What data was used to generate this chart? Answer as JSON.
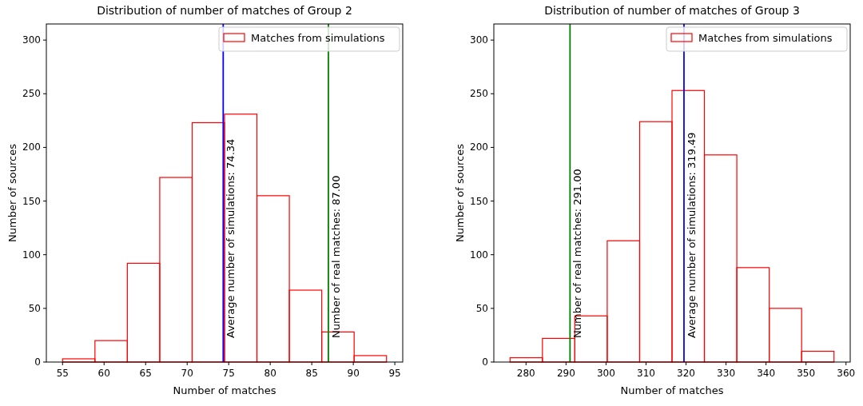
{
  "chart_data": [
    {
      "type": "histogram",
      "title": "Distribution of number of matches of Group 2",
      "xlabel": "Number of matches",
      "ylabel": "Number of sources",
      "bins": [
        55,
        58.9,
        62.8,
        66.7,
        70.6,
        74.5,
        78.4,
        82.3,
        86.2,
        90.1,
        94
      ],
      "series": [
        {
          "name": "Matches from simulations",
          "color": "#ff0000",
          "values": [
            3,
            20,
            92,
            172,
            223,
            231,
            155,
            67,
            28,
            6
          ]
        }
      ],
      "xlim": [
        53.05,
        95.95
      ],
      "xticks": [
        55,
        60,
        65,
        70,
        75,
        80,
        85,
        90,
        95
      ],
      "ylim": [
        0,
        315
      ],
      "yticks": [
        0,
        50,
        100,
        150,
        200,
        250,
        300
      ],
      "ref_lines": [
        {
          "axis": "x",
          "value": 74.34,
          "label": "Average number of simulations: 74.34",
          "color": "#0000ff"
        },
        {
          "axis": "x",
          "value": 87,
          "label": "Number of real matches: 87.00",
          "color": "#008000"
        }
      ],
      "legend": "top right"
    },
    {
      "type": "histogram",
      "title": "Distribution of number of matches of Group 3",
      "xlabel": "Number of matches",
      "ylabel": "Number of sources",
      "bins": [
        276,
        284.1,
        292.2,
        300.3,
        308.4,
        316.5,
        324.6,
        332.7,
        340.8,
        348.9,
        357
      ],
      "series": [
        {
          "name": "Matches from simulations",
          "color": "#ff0000",
          "values": [
            4,
            22,
            43,
            113,
            224,
            253,
            193,
            88,
            50,
            10
          ]
        }
      ],
      "xlim": [
        271.95,
        361.05
      ],
      "xticks": [
        280,
        290,
        300,
        310,
        320,
        330,
        340,
        350,
        360
      ],
      "ylim": [
        0,
        315
      ],
      "yticks": [
        0,
        50,
        100,
        150,
        200,
        250,
        300
      ],
      "ref_lines": [
        {
          "axis": "x",
          "value": 291,
          "label": "Number of real matches: 291.00",
          "color": "#008000"
        },
        {
          "axis": "x",
          "value": 319.49,
          "label": "Average number of simulations: 319.49",
          "color": "#0000ff"
        }
      ],
      "legend": "top right"
    }
  ]
}
